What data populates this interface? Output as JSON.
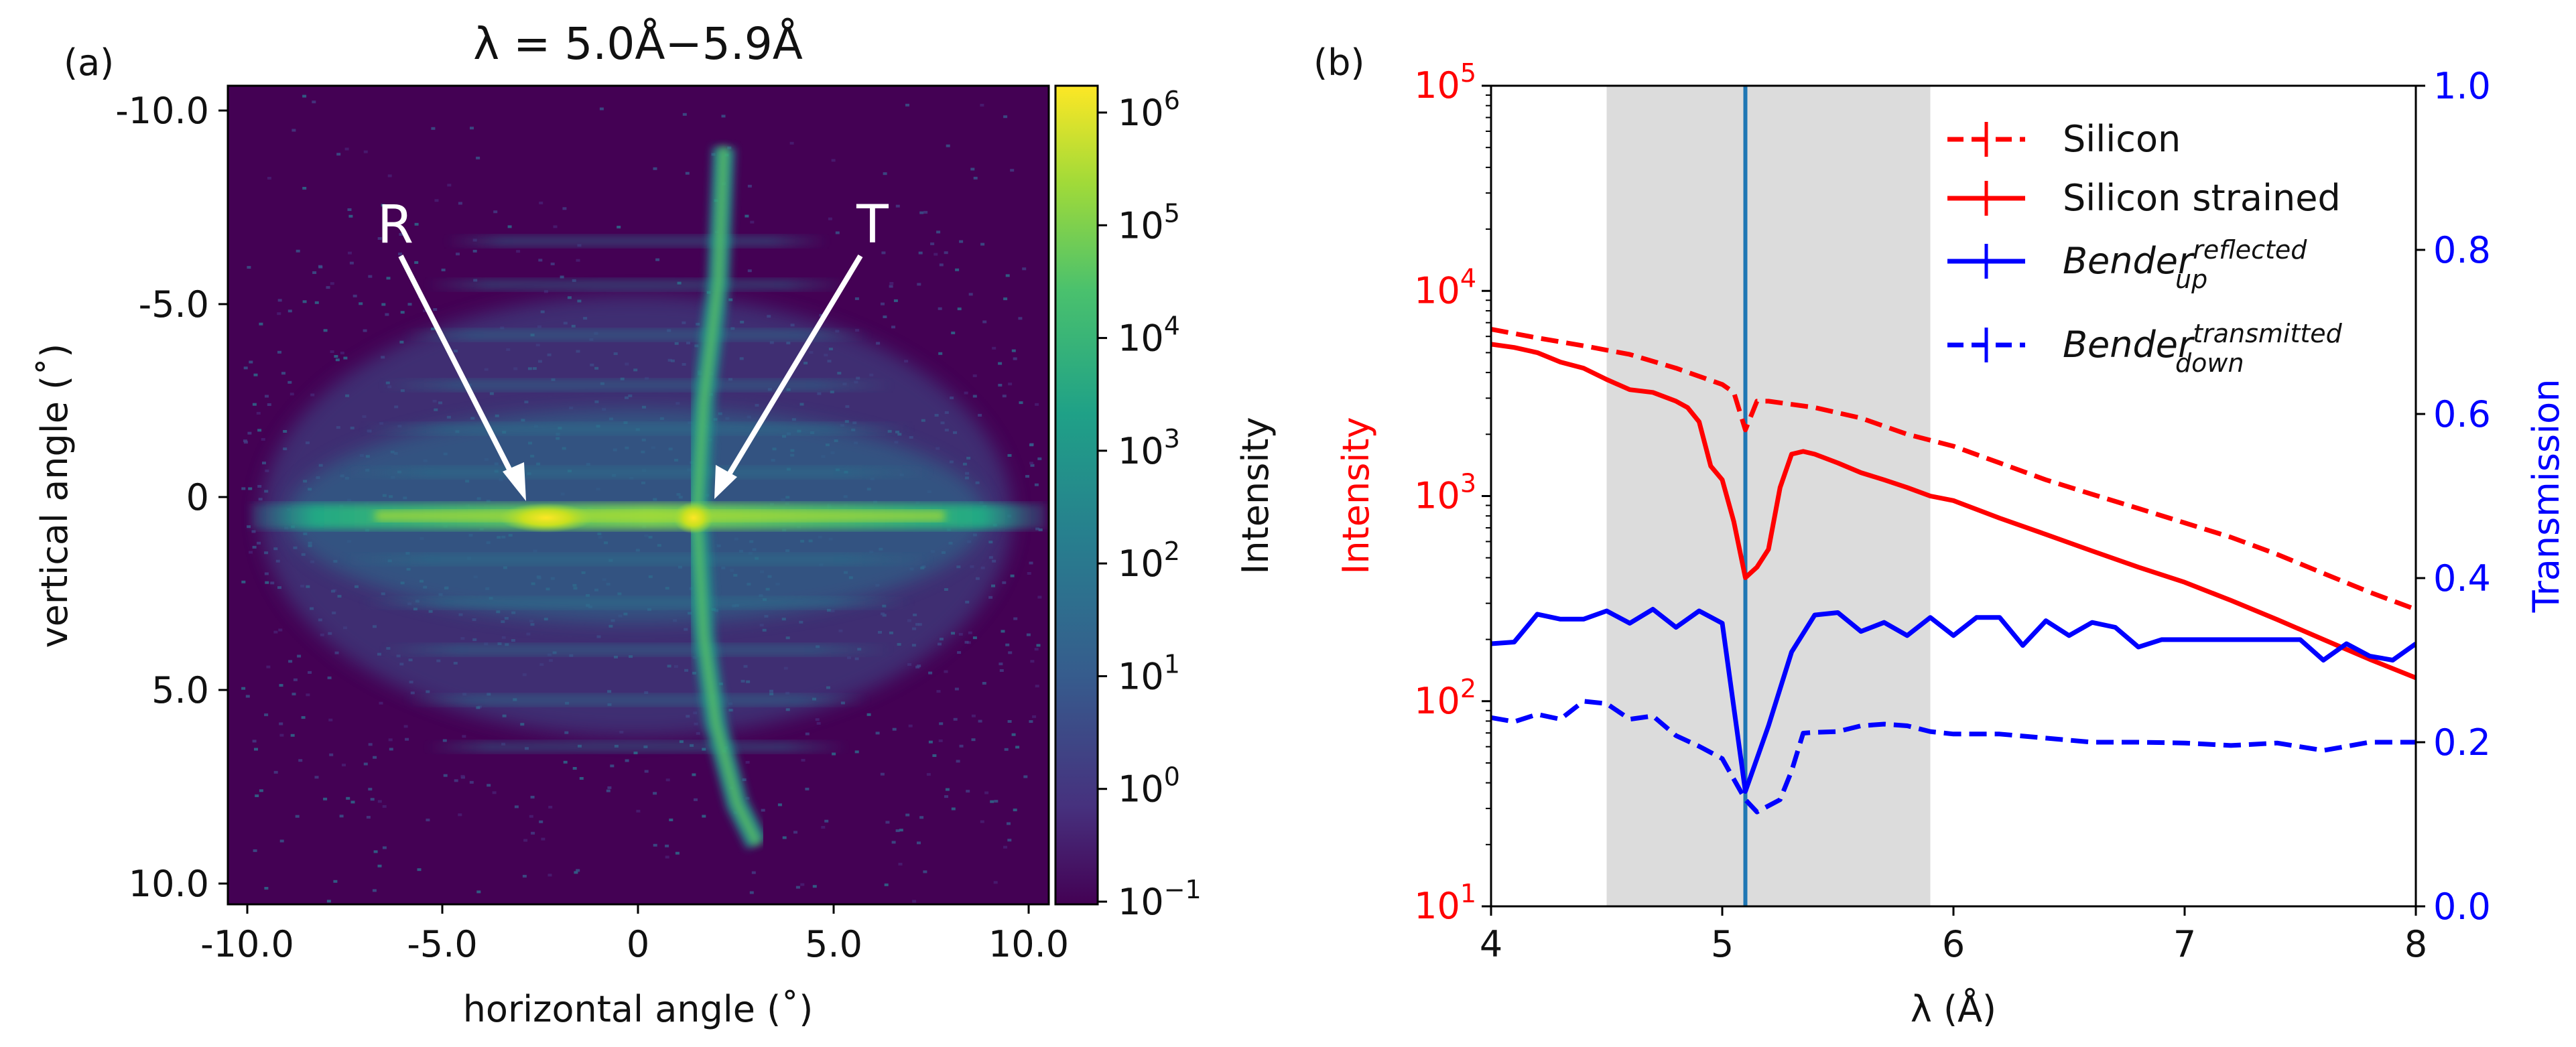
{
  "panel_a": {
    "label": "(a)",
    "title": "λ = 5.0Å−5.9Å",
    "xlabel": "horizontal angle (˚)",
    "ylabel": "vertical angle (˚)",
    "xticks": [
      "-10.0",
      "-5.0",
      "0",
      "5.0",
      "10.0"
    ],
    "yticks": [
      "-10.0",
      "-5.0",
      "0",
      "5.0",
      "10.0"
    ],
    "annotations": {
      "reflected": "R",
      "transmitted": "T"
    },
    "colorbar": {
      "label": "Intensity",
      "ticks": [
        {
          "base": "10",
          "exp": "6"
        },
        {
          "base": "10",
          "exp": "5"
        },
        {
          "base": "10",
          "exp": "4"
        },
        {
          "base": "10",
          "exp": "3"
        },
        {
          "base": "10",
          "exp": "2"
        },
        {
          "base": "10",
          "exp": "1"
        },
        {
          "base": "10",
          "exp": "0"
        },
        {
          "base": "10",
          "exp": "−1"
        }
      ]
    },
    "colors": {
      "low": "#440154",
      "mid": "#21918c",
      "high": "#fde725"
    }
  },
  "chart_data": [
    {
      "type": "heatmap",
      "title": "λ = 5.0Å−5.9Å",
      "xlabel": "horizontal angle (˚)",
      "ylabel": "vertical angle (˚)",
      "xlim": [
        -10.5,
        10.5
      ],
      "ylim": [
        -10.6,
        10.5
      ],
      "colorbar_range": [
        0.1,
        1500000
      ],
      "colorscale": "viridis (log)",
      "features": [
        {
          "name": "reflected peak",
          "x": -2.5,
          "y": 0.6
        },
        {
          "name": "transmitted peak",
          "x": 1.5,
          "y": 0.6
        }
      ]
    },
    {
      "type": "line",
      "xlabel": "λ (Å)",
      "ylabel": "Intensity",
      "y2label": "Transmission",
      "xlim": [
        4,
        8
      ],
      "ylim": [
        10,
        100000
      ],
      "yscale": "log",
      "y2lim": [
        0,
        1.0
      ],
      "shaded_region": [
        4.5,
        5.9
      ],
      "vline": 5.1,
      "series": [
        {
          "name": "Silicon",
          "axis": "left",
          "style": "dashed",
          "color": "#ff0000",
          "x": [
            4.0,
            4.2,
            4.4,
            4.6,
            4.8,
            5.0,
            5.05,
            5.1,
            5.15,
            5.2,
            5.4,
            5.6,
            5.8,
            6.0,
            6.2,
            6.4,
            6.6,
            6.8,
            7.0,
            7.2,
            7.4,
            7.6,
            7.8,
            8.0
          ],
          "values": [
            6500,
            5900,
            5400,
            4900,
            4200,
            3500,
            3200,
            2100,
            2900,
            2900,
            2700,
            2400,
            2000,
            1750,
            1450,
            1200,
            1020,
            870,
            740,
            630,
            520,
            420,
            340,
            280
          ]
        },
        {
          "name": "Silicon strained",
          "axis": "left",
          "style": "solid",
          "color": "#ff0000",
          "x": [
            4.0,
            4.1,
            4.2,
            4.3,
            4.4,
            4.5,
            4.6,
            4.7,
            4.8,
            4.85,
            4.9,
            4.95,
            5.0,
            5.05,
            5.1,
            5.15,
            5.2,
            5.25,
            5.3,
            5.35,
            5.4,
            5.5,
            5.6,
            5.7,
            5.8,
            5.9,
            6.0,
            6.2,
            6.4,
            6.6,
            6.8,
            7.0,
            7.2,
            7.4,
            7.6,
            7.8,
            8.0
          ],
          "values": [
            5500,
            5300,
            5000,
            4500,
            4200,
            3700,
            3300,
            3200,
            2900,
            2700,
            2300,
            1400,
            1200,
            750,
            400,
            450,
            550,
            1100,
            1600,
            1650,
            1600,
            1450,
            1300,
            1200,
            1100,
            1000,
            950,
            780,
            650,
            540,
            450,
            380,
            310,
            250,
            200,
            160,
            130
          ]
        },
        {
          "name": "Bender_up^reflected",
          "axis": "right",
          "style": "solid",
          "color": "#0000ff",
          "x": [
            4.0,
            4.1,
            4.2,
            4.3,
            4.4,
            4.5,
            4.6,
            4.7,
            4.8,
            4.9,
            5.0,
            5.1,
            5.2,
            5.3,
            5.4,
            5.5,
            5.6,
            5.7,
            5.8,
            5.9,
            6.0,
            6.1,
            6.2,
            6.3,
            6.4,
            6.5,
            6.6,
            6.7,
            6.8,
            6.9,
            7.0,
            7.2,
            7.4,
            7.5,
            7.6,
            7.7,
            7.8,
            7.9,
            8.0
          ],
          "values": [
            0.32,
            0.322,
            0.356,
            0.35,
            0.35,
            0.36,
            0.345,
            0.362,
            0.34,
            0.36,
            0.345,
            0.14,
            0.22,
            0.31,
            0.355,
            0.358,
            0.335,
            0.346,
            0.33,
            0.352,
            0.33,
            0.352,
            0.352,
            0.318,
            0.348,
            0.33,
            0.346,
            0.34,
            0.316,
            0.325,
            0.325,
            0.325,
            0.325,
            0.325,
            0.3,
            0.32,
            0.305,
            0.3,
            0.32
          ]
        },
        {
          "name": "Bender_down^transmitted",
          "axis": "right",
          "style": "dashed",
          "color": "#0000ff",
          "x": [
            4.0,
            4.1,
            4.2,
            4.3,
            4.4,
            4.5,
            4.6,
            4.7,
            4.8,
            4.9,
            5.0,
            5.1,
            5.15,
            5.25,
            5.3,
            5.35,
            5.4,
            5.5,
            5.6,
            5.7,
            5.8,
            5.9,
            6.0,
            6.2,
            6.4,
            6.6,
            6.8,
            7.0,
            7.2,
            7.4,
            7.6,
            7.8,
            8.0
          ],
          "values": [
            0.23,
            0.225,
            0.234,
            0.228,
            0.25,
            0.247,
            0.228,
            0.232,
            0.208,
            0.195,
            0.18,
            0.13,
            0.115,
            0.13,
            0.165,
            0.211,
            0.212,
            0.213,
            0.22,
            0.222,
            0.22,
            0.213,
            0.21,
            0.21,
            0.205,
            0.2,
            0.2,
            0.199,
            0.196,
            0.199,
            0.19,
            0.2,
            0.2
          ]
        }
      ]
    }
  ],
  "panel_b": {
    "label": "(b)",
    "xlabel": "λ (Å)",
    "ylabel": "Intensity",
    "y2label": "Transmission",
    "xticks": [
      "4",
      "5",
      "6",
      "7",
      "8"
    ],
    "yticks": [
      {
        "base": "10",
        "exp": "5"
      },
      {
        "base": "10",
        "exp": "4"
      },
      {
        "base": "10",
        "exp": "3"
      },
      {
        "base": "10",
        "exp": "2"
      },
      {
        "base": "10",
        "exp": "1"
      }
    ],
    "y2ticks": [
      "1.0",
      "0.8",
      "0.6",
      "0.4",
      "0.2",
      "0.0"
    ],
    "legend": [
      {
        "text": "Silicon",
        "style": "dashed",
        "color": "#ff0000"
      },
      {
        "text": "Silicon strained",
        "style": "solid",
        "color": "#ff0000"
      },
      {
        "text": "Bender",
        "sup": "reflected",
        "sub": "up",
        "style": "solid",
        "color": "#0000ff"
      },
      {
        "text": "Bender",
        "sup": "transmitted",
        "sub": "down",
        "style": "dashed",
        "color": "#0000ff"
      }
    ],
    "colors": {
      "left_axis": "#ff0000",
      "right_axis": "#0000ff",
      "vline": "#1f77b4",
      "shade": "#dcdcdc"
    }
  }
}
